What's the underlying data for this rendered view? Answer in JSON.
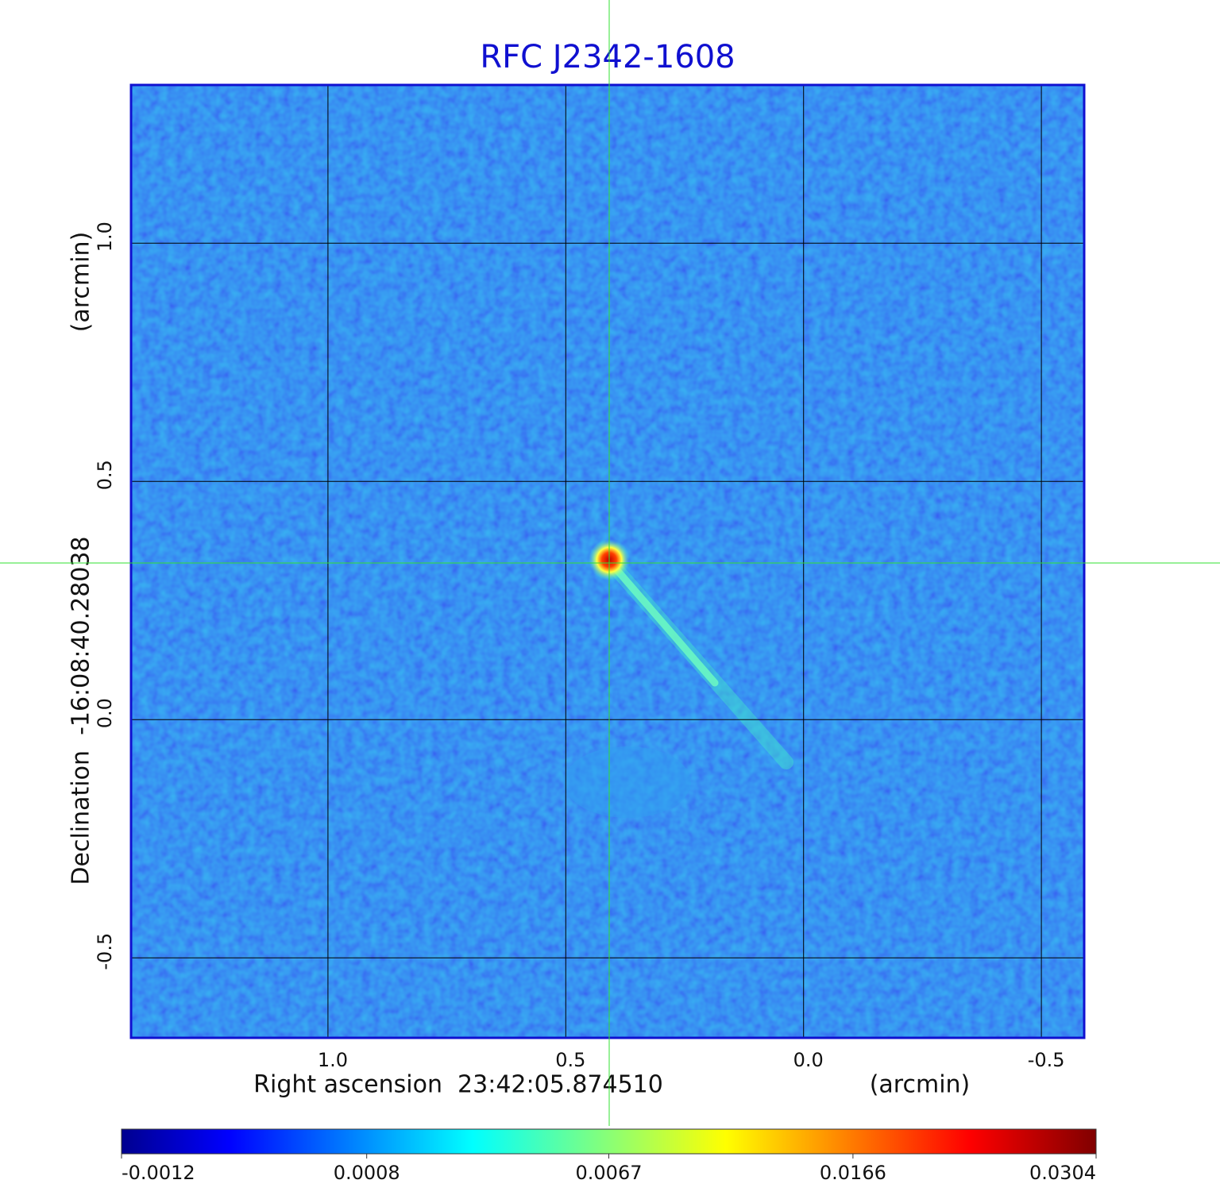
{
  "chart_data": {
    "type": "image",
    "title": "RFC J2342-1608",
    "x_label": "Right ascension  23:42:05.874510",
    "x_unit": "(arcmin)",
    "y_label": "Declination  -16:08:40.28038",
    "y_unit": "(arcmin)",
    "xlim": [
      1.414,
      -0.59
    ],
    "ylim": [
      -0.668,
      1.332
    ],
    "xticks": [
      {
        "value": 1,
        "label": "1.0"
      },
      0.5,
      {
        "value": 0,
        "label": "0.0"
      },
      -0.5
    ],
    "yticks": [
      -0.5,
      {
        "value": 0,
        "label": "0.0"
      },
      0.5,
      {
        "value": 1,
        "label": "1.0"
      }
    ],
    "grid": true,
    "colorbar": {
      "colormap": "jet",
      "scale": "sqrt",
      "lim": [
        -0.0012,
        0.0304
      ],
      "ticks": [
        -0.0012,
        0.0008,
        0.0067,
        0.0166,
        0.0304
      ]
    }
  }
}
